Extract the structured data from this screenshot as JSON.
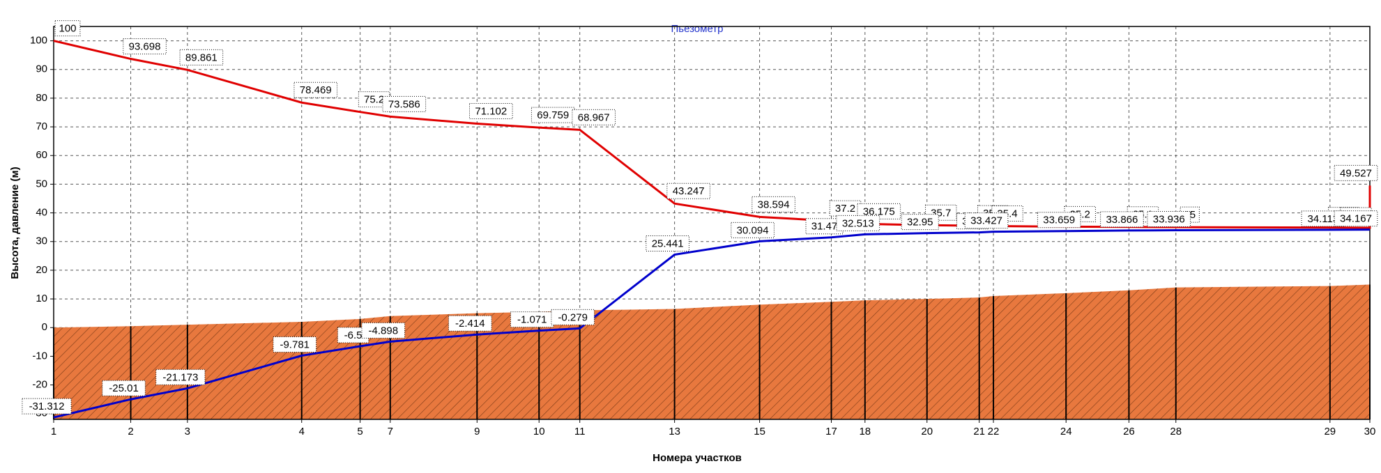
{
  "chart_data": {
    "type": "line",
    "title": "Пьезометр",
    "xlabel": "Номера участков",
    "ylabel": "Высота, давление (м)",
    "xlim": [
      0,
      1486
    ],
    "ylim": [
      -32,
      105
    ],
    "xticks": [
      {
        "value": 0,
        "label": "1"
      },
      {
        "value": 87,
        "label": "2"
      },
      {
        "value": 151,
        "label": "3"
      },
      {
        "value": 280,
        "label": "4"
      },
      {
        "value": 346,
        "label": "5"
      },
      {
        "value": 380,
        "label": "7"
      },
      {
        "value": 478,
        "label": "9"
      },
      {
        "value": 548,
        "label": "10"
      },
      {
        "value": 594,
        "label": "11"
      },
      {
        "value": 701,
        "label": "13"
      },
      {
        "value": 797,
        "label": "15"
      },
      {
        "value": 878,
        "label": "17"
      },
      {
        "value": 916,
        "label": "18"
      },
      {
        "value": 986,
        "label": "20"
      },
      {
        "value": 1045,
        "label": "21"
      },
      {
        "value": 1061,
        "label": "22"
      },
      {
        "value": 1143,
        "label": "24"
      },
      {
        "value": 1214,
        "label": "26"
      },
      {
        "value": 1267,
        "label": "28"
      },
      {
        "value": 1441,
        "label": "29"
      },
      {
        "value": 1486,
        "label": "30"
      }
    ],
    "yticks": [
      -30,
      -20,
      -10,
      0,
      10,
      20,
      30,
      40,
      50,
      60,
      70,
      80,
      90,
      100
    ],
    "grid": true,
    "x": [
      0,
      87,
      151,
      280,
      346,
      380,
      478,
      548,
      594,
      701,
      797,
      878,
      916,
      986,
      1045,
      1061,
      1143,
      1214,
      1267,
      1441,
      1486
    ],
    "series": [
      {
        "color": "#e00000",
        "x": [
          0,
          87,
          151,
          280,
          346,
          380,
          478,
          548,
          594,
          701,
          797,
          878,
          916,
          986,
          1045,
          1061,
          1143,
          1214,
          1267,
          1441,
          1486,
          1486
        ],
        "values": [
          100,
          93.698,
          89.861,
          78.469,
          75.2,
          73.586,
          71.102,
          69.759,
          68.967,
          43.247,
          38.594,
          37.2,
          36.175,
          35.7,
          35.5,
          35.4,
          35.2,
          35.1,
          35.0,
          34.9,
          34.8,
          49.527
        ]
      },
      {
        "color": "#0000cc",
        "values": [
          -31.312,
          -25.01,
          -21.173,
          -9.781,
          -6.5,
          -4.898,
          -2.414,
          -1.071,
          -0.279,
          25.441,
          30.094,
          31.47,
          32.513,
          32.95,
          33.2,
          33.427,
          33.659,
          33.866,
          33.936,
          34.113,
          34.167
        ]
      }
    ],
    "area": {
      "color": "#e8783e",
      "values": [
        0,
        0.5,
        1,
        2,
        3,
        4,
        5,
        5.5,
        6,
        6.5,
        8,
        9,
        9.5,
        10,
        10.5,
        11,
        12,
        13,
        14,
        14.5,
        15
      ]
    }
  }
}
